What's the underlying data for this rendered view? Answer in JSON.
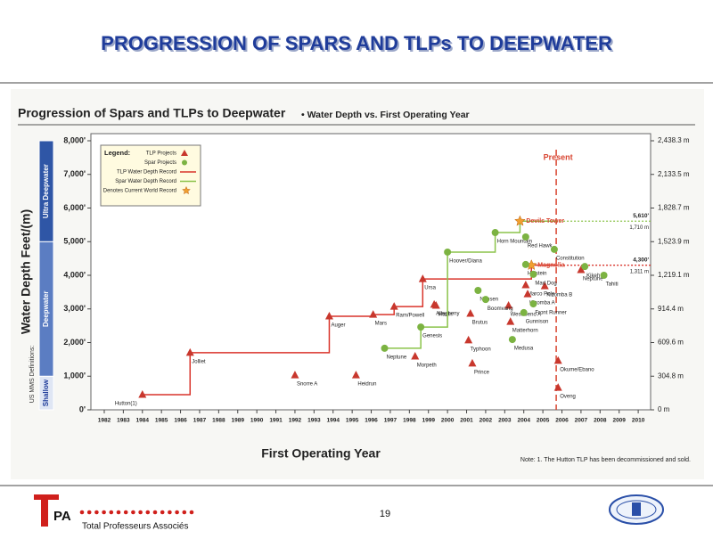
{
  "slide_title": "PROGRESSION OF SPARS AND TLPs TO DEEPWATER",
  "page_number": "19",
  "organization": "Total Professeurs Associés",
  "chart_data": {
    "type": "scatter",
    "title": "Progression of Spars and TLPs to Deepwater",
    "subtitle": "• Water Depth vs. First Operating Year",
    "x_label": "First Operating Year",
    "y_label": "Water Depth Feet/(m)",
    "note": "Note: 1. The Hutton TLP has been decommissioned and sold.",
    "zones_title": "US MMS Definitions:",
    "zones": [
      {
        "label": "Shallow",
        "from": 0,
        "to": 1000
      },
      {
        "label": "Deepwater",
        "from": 1000,
        "to": 5000
      },
      {
        "label": "Ultra Deepwater",
        "from": 5000,
        "to": 8000
      }
    ],
    "xlim": [
      1981.3,
      2010.65
    ],
    "xticks": [
      1982,
      1983,
      1984,
      1985,
      1986,
      1987,
      1988,
      1989,
      1990,
      1991,
      1992,
      1993,
      1994,
      1995,
      1996,
      1997,
      1998,
      1999,
      2000,
      2001,
      2002,
      2003,
      2004,
      2005,
      2006,
      2007,
      2008,
      2009,
      2010
    ],
    "ylim": [
      0,
      8000
    ],
    "yticks": [
      {
        "value": 0,
        "label": "0'"
      },
      {
        "value": 1000,
        "label": "1,000'"
      },
      {
        "value": 2000,
        "label": "2,000'"
      },
      {
        "value": 3000,
        "label": "3,000'"
      },
      {
        "value": 4000,
        "label": "4,000'"
      },
      {
        "value": 5000,
        "label": "5,000'"
      },
      {
        "value": 6000,
        "label": "6,000'"
      },
      {
        "value": 7000,
        "label": "7,000'"
      },
      {
        "value": 8000,
        "label": "8,000'"
      }
    ],
    "y2lim": [
      0,
      2438.4
    ],
    "y2ticks": [
      {
        "value": 0,
        "label": "0 m"
      },
      {
        "value": 304.8,
        "label": "304.8 m"
      },
      {
        "value": 609.6,
        "label": "609.6 m"
      },
      {
        "value": 914.4,
        "label": "914.4 m"
      },
      {
        "value": 1219.1,
        "label": "1,219.1 m"
      },
      {
        "value": 1523.9,
        "label": "1,523.9 m"
      },
      {
        "value": 1828.7,
        "label": "1,828.7 m"
      },
      {
        "value": 2133.5,
        "label": "2,133.5 m"
      },
      {
        "value": 2438.3,
        "label": "2,438.3 m"
      }
    ],
    "present": {
      "label": "Present",
      "x": 2005.7
    },
    "legend_title": "Legend:",
    "legend_extra": [
      "TLP Water Depth Record",
      "Spar Water Depth Record",
      "Denotes Current World Record"
    ],
    "series": [
      {
        "name": "TLP Projects",
        "color": "#c8372d",
        "marker": "triangle",
        "labels": [
          "Hutton(1)",
          "Jolliet",
          "Snorre A",
          "Auger",
          "Heidrun",
          "Mars",
          "Ram/Powell",
          "Morpeth",
          "Ursa",
          "Allegheny",
          "Marlin",
          "Typhoon",
          "Brutus",
          "Prince",
          "West Seno A",
          "Matterhorn",
          "Marco Polo",
          "Kizomba A",
          "Magnolia",
          "Kizomba B",
          "Okume/Ebano",
          "Oveng",
          "Neptune"
        ],
        "x": [
          1984.0,
          1986.5,
          1992.0,
          1993.8,
          1995.2,
          1996.1,
          1997.2,
          1998.3,
          1998.7,
          1999.3,
          1999.4,
          2001.1,
          2001.2,
          2001.3,
          2003.2,
          2003.3,
          2004.1,
          2004.2,
          2004.4,
          2005.1,
          2005.8,
          2005.8,
          2007.0
        ],
        "values": [
          450,
          1700,
          1030,
          2780,
          1030,
          2830,
          3070,
          1590,
          3890,
          3130,
          3100,
          2070,
          2860,
          1380,
          3100,
          2620,
          3710,
          3440,
          4300,
          3680,
          1460,
          660,
          4160
        ],
        "record_label": "4,300'",
        "record_label_m": "1,311 m"
      },
      {
        "name": "Spar Projects",
        "color": "#7cb342",
        "marker": "circle",
        "labels": [
          "Neptune",
          "Genesis",
          "Hoover/Diana",
          "Nansen",
          "Boomvang",
          "Horn Mountain",
          "Medusa",
          "Devils Tower",
          "Gunnison",
          "Red Hawk",
          "Holstein",
          "Front Runner",
          "Mad Dog",
          "Constitution",
          "Kikeh",
          "Tahiti"
        ],
        "x": [
          1996.7,
          1998.6,
          2000.0,
          2001.6,
          2002.0,
          2002.5,
          2003.4,
          2003.8,
          2004.0,
          2004.1,
          2004.1,
          2004.5,
          2004.5,
          2005.6,
          2007.2,
          2008.2
        ],
        "values": [
          1830,
          2460,
          4690,
          3550,
          3280,
          5270,
          2090,
          5610,
          2890,
          5140,
          4320,
          3150,
          4030,
          4770,
          4260,
          4000
        ],
        "record_label": "5,610'",
        "record_label_m": "1,710 m"
      }
    ]
  }
}
